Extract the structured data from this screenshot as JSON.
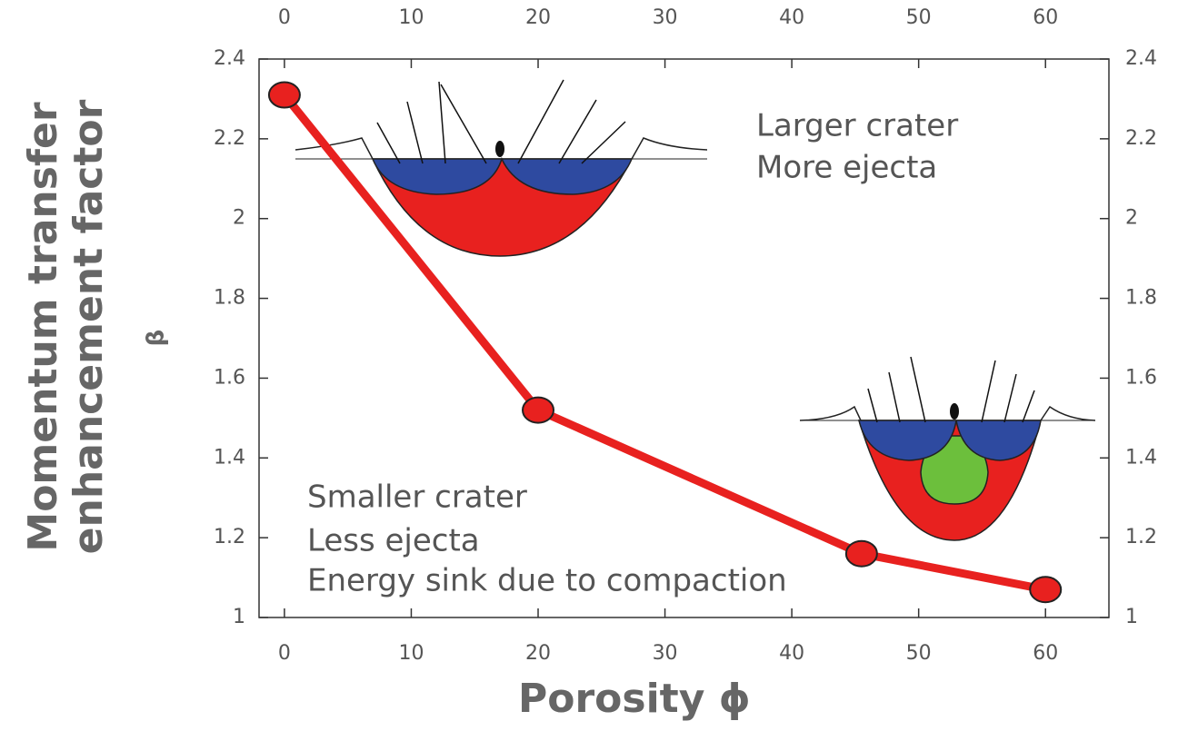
{
  "chart_data": {
    "type": "line",
    "ylabel": [
      "Momentum transfer",
      "enhancement factor"
    ],
    "ylabel_symbol": "β",
    "xlabel": "Porosity ϕ",
    "annotations": [
      "Larger crater",
      "More ejecta",
      "Smaller crater",
      "Less ejecta",
      "Energy sink due to compaction"
    ],
    "x": [
      0,
      20,
      45.5,
      60
    ],
    "series": [
      {
        "color": "#e8211f",
        "values": [
          2.31,
          1.52,
          1.16,
          1.07
        ]
      }
    ],
    "xlim": [
      -2,
      65
    ],
    "xticks": [
      0,
      10,
      20,
      30,
      40,
      50,
      60
    ],
    "ylim": [
      1,
      2.4
    ],
    "yticks": [
      1,
      1.2,
      1.4,
      1.6,
      1.8,
      2,
      2.2,
      2.4
    ]
  }
}
